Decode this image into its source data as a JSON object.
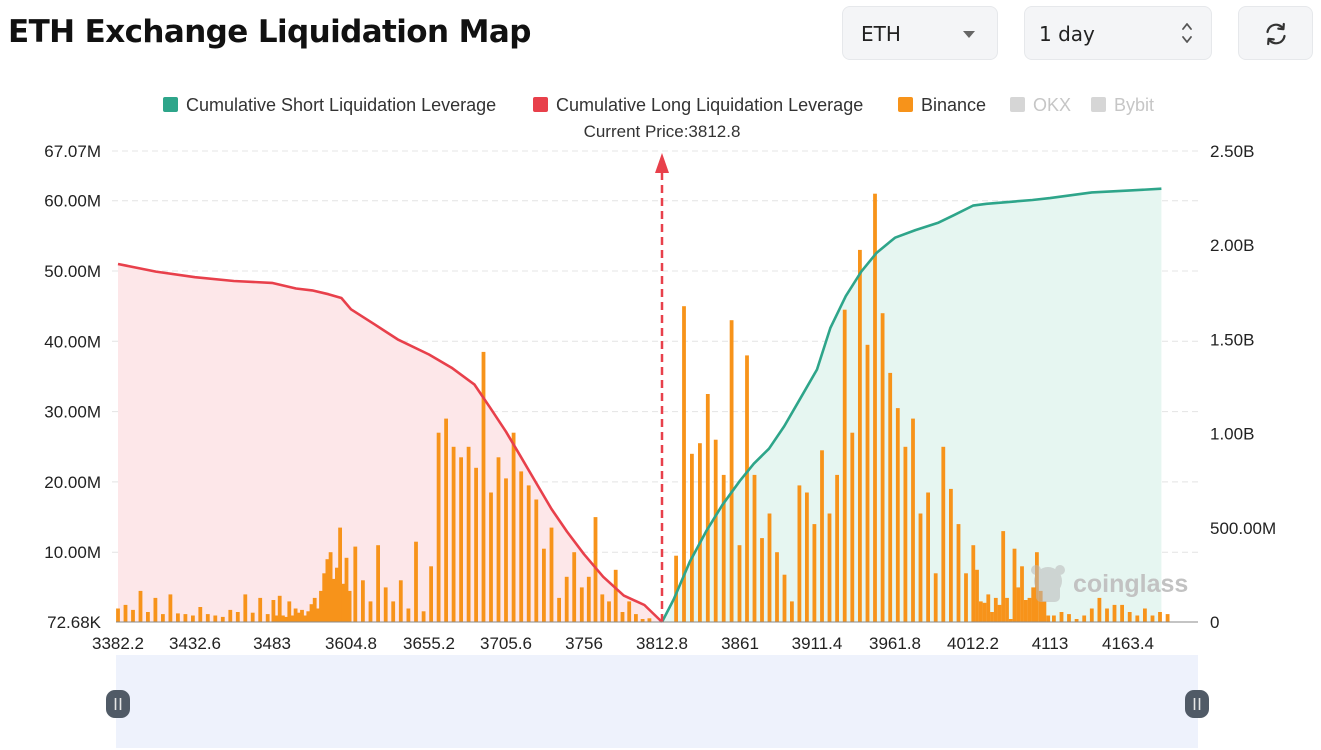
{
  "header": {
    "title": "ETH Exchange Liquidation Map",
    "coin_select": {
      "value": "ETH",
      "icon": "chevron-down-icon"
    },
    "range_select": {
      "value": "1 day",
      "icon": "up-down-icon"
    },
    "refresh_button": {
      "icon": "refresh-icon"
    }
  },
  "watermark": {
    "text": "coinglass",
    "icon": "coinglass-logo-icon"
  },
  "colors": {
    "short": "#2ea58a",
    "short_fill": "#e6f6f1",
    "long": "#e8404b",
    "long_fill": "#fde7e9",
    "binance": "#f7931a",
    "disabled": "#d6d6d6",
    "marker": "#e8404b"
  },
  "chart_data": {
    "type": "bar",
    "title": "",
    "current_price_label": "Current Price:3812.8",
    "current_price": 3812.8,
    "legend": [
      {
        "name": "Cumulative Short Liquidation Leverage",
        "color": "#2ea58a",
        "active": true
      },
      {
        "name": "Cumulative Long Liquidation Leverage",
        "color": "#e8404b",
        "active": true
      },
      {
        "name": "Binance",
        "color": "#f7931a",
        "active": true
      },
      {
        "name": "OKX",
        "color": "#d6d6d6",
        "active": false
      },
      {
        "name": "Bybit",
        "color": "#d6d6d6",
        "active": false
      }
    ],
    "legend_placement": "top-center",
    "grid": true,
    "x_range": [
      3382.2,
      4185
    ],
    "x_ticks": [
      3382.2,
      3432.6,
      3483,
      3604.8,
      3655.2,
      3705.6,
      3756,
      3812.8,
      3861,
      3911.4,
      3961.8,
      4012.2,
      4113,
      4163.4
    ],
    "x_tick_labels": [
      "3382.2",
      "3432.6",
      "3483",
      "3604.8",
      "3655.2",
      "3705.6",
      "3756",
      "3812.8",
      "3861",
      "3911.4",
      "3961.8",
      "4012.2",
      "4113",
      "4163.4"
    ],
    "y_left": {
      "range": [
        0.07268,
        67.07
      ],
      "unit": "M",
      "ticks": [
        0.07268,
        10,
        20,
        30,
        40,
        50,
        60,
        67.07
      ],
      "tick_labels": [
        "72.68K",
        "10.00M",
        "20.00M",
        "30.00M",
        "40.00M",
        "50.00M",
        "60.00M",
        "67.07M"
      ]
    },
    "y_right": {
      "range": [
        0,
        2.5
      ],
      "unit": "B",
      "ticks": [
        0,
        0.5,
        1.0,
        1.5,
        2.0,
        2.5
      ],
      "tick_labels": [
        "0",
        "500.00M",
        "1.00B",
        "1.50B",
        "2.00B",
        "2.50B"
      ]
    },
    "bars": {
      "name": "Binance",
      "x_start": 3382.2,
      "x_step": 4.9,
      "values": [
        2.0,
        2.5,
        1.8,
        4.5,
        1.5,
        3.5,
        1.2,
        4.0,
        1.3,
        1.2,
        1.0,
        2.2,
        1.2,
        1.0,
        0.8,
        1.8,
        1.5,
        4.0,
        1.4,
        3.5,
        1.2,
        3.2,
        1.0,
        3.8,
        1.0,
        0.8,
        3.0,
        1.0,
        2.0,
        1.4,
        1.8,
        1.0,
        1.6,
        2.6,
        3.5,
        2.0,
        4.5,
        7.0,
        9.0,
        10.0,
        6.2,
        7.8,
        13.5,
        5.5,
        9.2,
        4.5,
        10.8,
        6.0,
        3.0,
        11.0,
        5.0,
        3.0,
        6.0,
        2.0,
        11.5,
        1.6,
        8.0,
        27.0,
        29.0,
        25.0,
        23.5,
        25.0,
        22.0,
        38.5,
        18.5,
        23.5,
        20.5,
        27.0,
        21.5,
        19.5,
        17.5,
        10.5,
        13.5,
        3.5,
        6.5,
        10.0,
        5.0,
        6.5,
        15.0,
        4.0,
        3.0,
        7.5,
        1.5,
        3.0,
        1.2,
        0.5,
        0.6,
        9.5,
        45.0,
        24.0,
        25.5,
        32.5,
        26.0,
        21.0,
        43.0,
        11.0,
        38.0,
        21.0,
        12.0,
        15.5,
        10.0,
        6.8,
        3.0,
        19.5,
        18.5,
        14.0,
        24.5,
        15.5,
        21.0,
        44.5,
        27.0,
        53.0,
        39.5,
        61.0,
        44.0,
        35.5,
        30.5,
        25.0,
        29.0,
        15.5,
        18.5,
        7.0,
        25.0,
        19.0,
        14.0,
        7.0,
        11.0,
        7.5,
        3.0,
        2.8,
        4.0,
        1.5,
        3.5,
        2.5,
        13.0,
        3.5,
        0.5,
        10.5,
        5.0,
        8.0,
        3.2,
        3.5,
        5.0,
        10.0,
        4.5,
        3.0,
        1.0,
        1.0,
        1.5,
        1.2,
        0.5,
        1.0,
        2.0,
        3.5,
        2.0,
        2.5,
        2.5,
        1.5,
        1.0,
        2.0,
        1.0,
        1.5,
        1.2
      ],
      "skip_x_range": [
        3807,
        3820
      ]
    },
    "series": [
      {
        "name": "Cumulative Long Liquidation Leverage",
        "axis": "right",
        "x": [
          3382.2,
          3407,
          3432.6,
          3458,
          3483,
          3520,
          3545,
          3570,
          3590,
          3604.8,
          3620,
          3635,
          3655.2,
          3670,
          3685,
          3695,
          3705.6,
          3715,
          3725,
          3735,
          3745,
          3756,
          3770,
          3785,
          3800,
          3812.8
        ],
        "y": [
          1.9,
          1.86,
          1.83,
          1.81,
          1.8,
          1.77,
          1.76,
          1.74,
          1.72,
          1.66,
          1.58,
          1.5,
          1.42,
          1.35,
          1.26,
          1.14,
          1.01,
          0.88,
          0.74,
          0.6,
          0.48,
          0.36,
          0.24,
          0.14,
          0.09,
          0.0
        ]
      },
      {
        "name": "Cumulative Short Liquidation Leverage",
        "axis": "right",
        "x": [
          3812.8,
          3820,
          3830,
          3840,
          3850,
          3861,
          3870,
          3880,
          3890,
          3900,
          3911.4,
          3920,
          3930,
          3940,
          3950,
          3961.8,
          3975,
          3990,
          4000,
          4012.2,
          4030,
          4060,
          4090,
          4113,
          4140,
          4163.4,
          4185
        ],
        "y": [
          0.0,
          0.12,
          0.32,
          0.48,
          0.62,
          0.75,
          0.84,
          0.92,
          1.04,
          1.18,
          1.34,
          1.56,
          1.73,
          1.86,
          1.96,
          2.04,
          2.08,
          2.12,
          2.16,
          2.21,
          2.22,
          2.23,
          2.24,
          2.25,
          2.28,
          2.29,
          2.3
        ]
      }
    ]
  }
}
